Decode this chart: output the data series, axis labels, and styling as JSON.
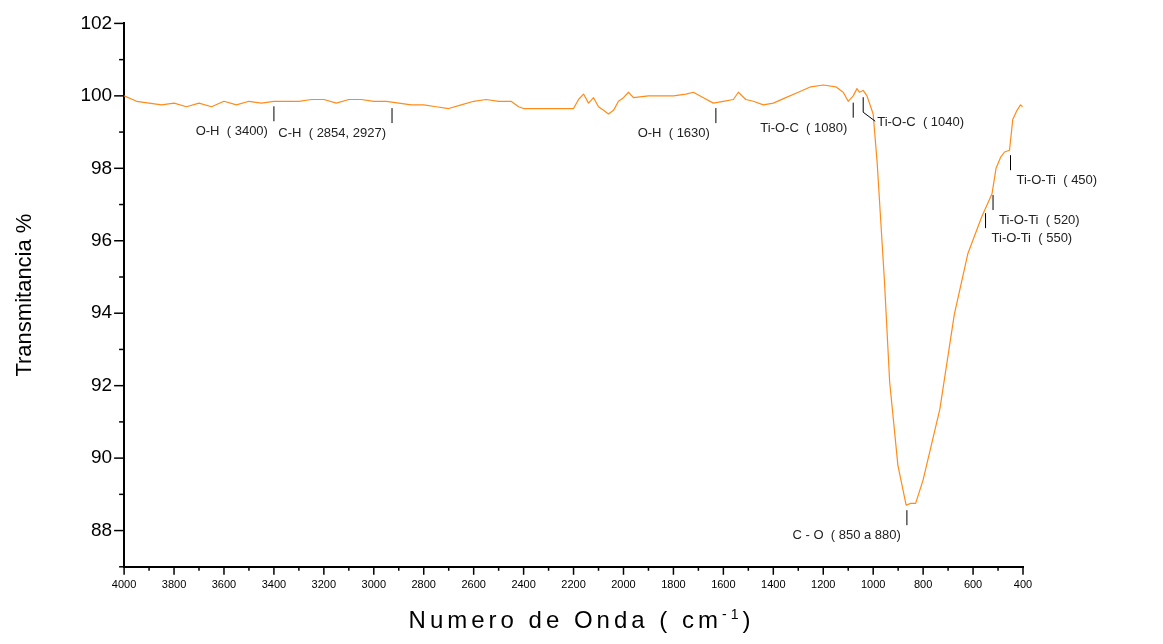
{
  "chart_data": {
    "type": "line",
    "xlabel": "Numero de Onda ( cm$^{-1}$)",
    "ylabel": "Transmitancia %",
    "xlim": [
      4000,
      400
    ],
    "ylim": [
      87,
      102
    ],
    "xticks": [
      4000,
      {
        "value": 3900,
        "label": null
      },
      3800,
      {
        "value": 3700,
        "label": null
      },
      3600,
      {
        "value": 3500,
        "label": null
      },
      3400,
      {
        "value": 3300,
        "label": null
      },
      3200,
      {
        "value": 3100,
        "label": null
      },
      3000,
      {
        "value": 2900,
        "label": null
      },
      2800,
      {
        "value": 2700,
        "label": null
      },
      2600,
      {
        "value": 2500,
        "label": null
      },
      2400,
      {
        "value": 2300,
        "label": null
      },
      2200,
      {
        "value": 2100,
        "label": null
      },
      2000,
      {
        "value": 1900,
        "label": null
      },
      1800,
      {
        "value": 1700,
        "label": null
      },
      1600,
      {
        "value": 1500,
        "label": null
      },
      1400,
      {
        "value": 1300,
        "label": null
      },
      1200,
      {
        "value": 1100,
        "label": null
      },
      1000,
      {
        "value": 900,
        "label": null
      },
      800,
      {
        "value": 700,
        "label": null
      },
      600,
      {
        "value": 500,
        "label": null
      },
      400
    ],
    "yticks": [
      {
        "value": 87,
        "label": null
      },
      88,
      {
        "value": 89,
        "label": null
      },
      90,
      {
        "value": 91,
        "label": null
      },
      92,
      {
        "value": 93,
        "label": null
      },
      94,
      {
        "value": 95,
        "label": null
      },
      96,
      {
        "value": 97,
        "label": null
      },
      98,
      {
        "value": 99,
        "label": null
      },
      100,
      {
        "value": 101,
        "label": null
      },
      102
    ],
    "grid": false,
    "legend": false,
    "marker": "none",
    "line_style": "solid",
    "series": [
      {
        "color": "#ff8c1a",
        "x": [
          4000,
          3950,
          3900,
          3850,
          3800,
          3750,
          3700,
          3650,
          3600,
          3550,
          3500,
          3450,
          3400,
          3350,
          3300,
          3250,
          3200,
          3150,
          3100,
          3050,
          3000,
          2950,
          2900,
          2850,
          2800,
          2750,
          2700,
          2650,
          2600,
          2550,
          2500,
          2450,
          2420,
          2400,
          2300,
          2200,
          2180,
          2160,
          2140,
          2120,
          2100,
          2080,
          2060,
          2040,
          2020,
          2000,
          1980,
          1960,
          1900,
          1850,
          1800,
          1750,
          1720,
          1680,
          1640,
          1600,
          1560,
          1540,
          1510,
          1480,
          1440,
          1400,
          1350,
          1300,
          1250,
          1200,
          1150,
          1120,
          1100,
          1080,
          1065,
          1055,
          1040,
          1025,
          1000,
          984,
          955,
          934,
          901,
          868,
          850,
          830,
          800,
          733,
          675,
          621,
          566,
          550,
          524,
          508,
          490,
          474,
          454,
          441,
          424,
          410,
          402
        ],
        "values": [
          100.0,
          99.85,
          99.8,
          99.75,
          99.8,
          99.7,
          99.8,
          99.7,
          99.85,
          99.75,
          99.85,
          99.8,
          99.85,
          99.85,
          99.85,
          99.9,
          99.9,
          99.8,
          99.9,
          99.9,
          99.85,
          99.85,
          99.8,
          99.75,
          99.75,
          99.7,
          99.65,
          99.75,
          99.85,
          99.9,
          99.85,
          99.85,
          99.7,
          99.65,
          99.65,
          99.65,
          99.9,
          100.05,
          99.8,
          99.95,
          99.7,
          99.6,
          99.5,
          99.6,
          99.85,
          99.95,
          100.1,
          99.95,
          100.0,
          100.0,
          100.0,
          100.05,
          100.1,
          99.95,
          99.8,
          99.85,
          99.9,
          100.1,
          99.9,
          99.85,
          99.75,
          99.8,
          99.95,
          100.1,
          100.25,
          100.3,
          100.25,
          100.1,
          99.85,
          100.0,
          100.2,
          100.1,
          100.15,
          100.0,
          99.5,
          98.15,
          94.9,
          92.1,
          89.8,
          88.7,
          88.75,
          88.75,
          89.4,
          91.35,
          93.97,
          95.64,
          96.65,
          96.9,
          97.3,
          98.0,
          98.3,
          98.45,
          98.5,
          99.35,
          99.6,
          99.75,
          99.7
        ]
      }
    ],
    "annotations": [
      {
        "text": "O-H  ( 3400)",
        "x": 3400,
        "y": 99.85
      },
      {
        "text": "C-H  ( 2854, 2927)",
        "x": 2927,
        "y": 99.8
      },
      {
        "text": "O-H  ( 1630)",
        "x": 1630,
        "y": 99.8
      },
      {
        "text": "Ti-O-C  ( 1080)",
        "x": 1080,
        "y": 99.95
      },
      {
        "text": "Ti-O-C  ( 1040)",
        "x": 1040,
        "y": 100.1
      },
      {
        "text": "C - O  ( 850 a 880)",
        "x": 865,
        "y": 88.7
      },
      {
        "text": "Ti-O-Ti  ( 550)",
        "x": 550,
        "y": 96.9
      },
      {
        "text": "Ti-O-Ti  ( 520)",
        "x": 520,
        "y": 97.4
      },
      {
        "text": "Ti-O-Ti  ( 450)",
        "x": 450,
        "y": 98.5
      }
    ]
  }
}
